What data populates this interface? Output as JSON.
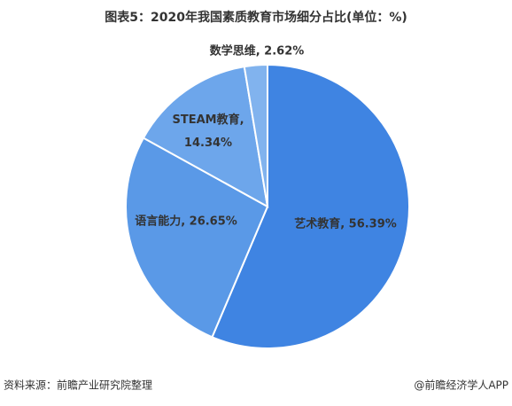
{
  "chart_data": {
    "type": "pie",
    "title": "图表5：2020年我国素质教育市场细分占比(单位：%)",
    "values": [
      56.39,
      26.65,
      14.34,
      2.62
    ],
    "value_labels": [
      "艺术教育, 56.39%",
      "语言能力, 26.65%",
      "STEAM教育,\n14.34%",
      "数学思维, 2.62%"
    ],
    "colors": [
      "#3f84e2",
      "#5a99e7",
      "#6da6eb",
      "#81b3ee"
    ],
    "source": "资料来源：前瞻产业研究院整理",
    "credit": "@前瞻经济学人APP"
  }
}
